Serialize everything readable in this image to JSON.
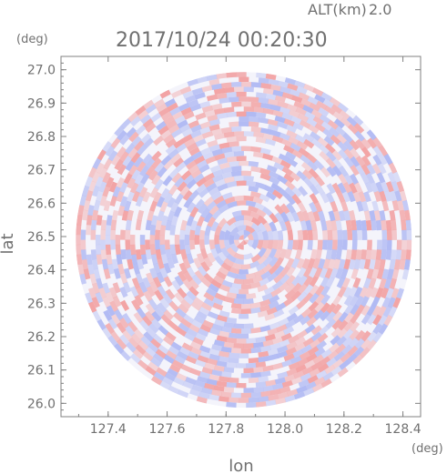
{
  "header": {
    "altitude_label": "ALT(km)",
    "altitude_value": "2.0",
    "timestamp": "2017/10/24 00:20:30"
  },
  "colors": {
    "axis": "#808080",
    "text": "#707070",
    "positive": "#f29a9a",
    "negative": "#a9b3f2",
    "neutral": "#f4f4fb"
  },
  "chart_data": {
    "type": "heatmap",
    "subtype": "polar radar scan (PPI) of radial velocity, red/blue diverging",
    "title": "2017/10/24 00:20:30",
    "xlabel": "lon",
    "ylabel": "lat",
    "x_unit": "(deg)",
    "y_unit": "(deg)",
    "xlim": [
      127.24,
      128.46
    ],
    "ylim": [
      25.96,
      27.04
    ],
    "x_ticks": [
      "127.4",
      "127.6",
      "127.8",
      "128.0",
      "128.2",
      "128.4"
    ],
    "y_ticks": [
      "27.0",
      "26.9",
      "26.8",
      "26.7",
      "26.6",
      "26.5",
      "26.4",
      "26.3",
      "26.2",
      "26.1",
      "26.0"
    ],
    "center": [
      127.86,
      26.49
    ],
    "radius_deg": [
      0.57,
      0.53
    ],
    "legend": "none",
    "grid": false
  }
}
